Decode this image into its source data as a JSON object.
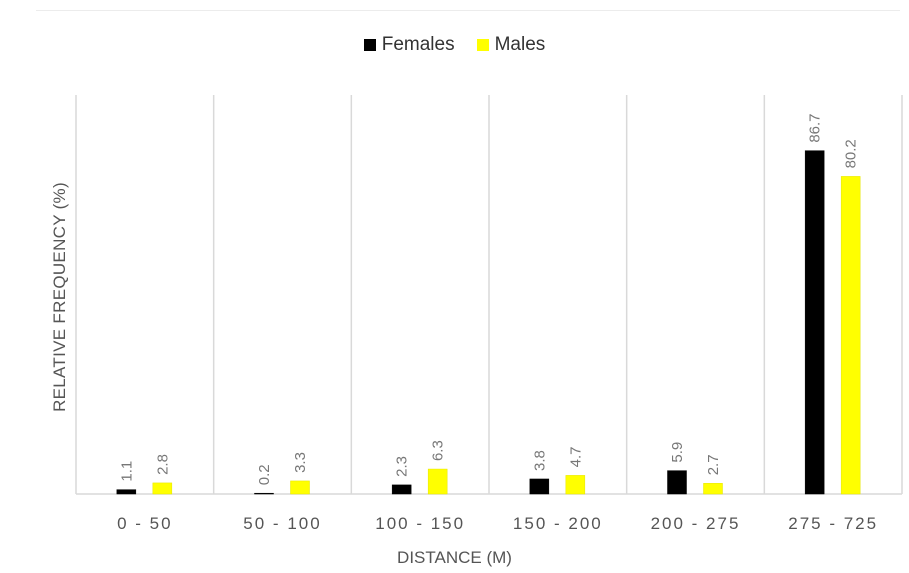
{
  "chart_data": {
    "type": "bar",
    "categories": [
      "0 - 50",
      "50 - 100",
      "100 - 150",
      "150 - 200",
      "200 - 275",
      "275 - 725"
    ],
    "series": [
      {
        "name": "Females",
        "color": "#000000",
        "values": [
          1.1,
          0.2,
          2.3,
          3.8,
          5.9,
          86.7
        ]
      },
      {
        "name": "Males",
        "color": "#ffff00",
        "values": [
          2.8,
          3.3,
          6.3,
          4.7,
          2.7,
          80.2
        ]
      }
    ],
    "xlabel": "DISTANCE (M)",
    "ylabel": "RELATIVE FREQUENCY (%)",
    "ylim": [
      0,
      100
    ],
    "legend_position": "top",
    "grid": "vertical category separators",
    "data_labels": true
  }
}
